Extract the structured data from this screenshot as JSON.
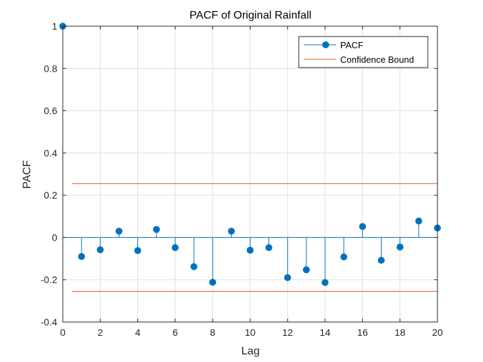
{
  "chart_data": {
    "type": "stem",
    "title": "PACF of Original Rainfall",
    "xlabel": "Lag",
    "ylabel": "PACF",
    "xlim": [
      0,
      20
    ],
    "ylim": [
      -0.4,
      1
    ],
    "xticks": [
      0,
      2,
      4,
      6,
      8,
      10,
      12,
      14,
      16,
      18,
      20
    ],
    "yticks": [
      -0.4,
      -0.2,
      0,
      0.2,
      0.4,
      0.6,
      0.8,
      1
    ],
    "grid": true,
    "legend_position": "top-right",
    "series": [
      {
        "name": "PACF",
        "color": "#0072BD",
        "x": [
          0,
          1,
          2,
          3,
          4,
          5,
          6,
          7,
          8,
          9,
          10,
          11,
          12,
          13,
          14,
          15,
          16,
          17,
          18,
          19,
          20
        ],
        "values": [
          1.0,
          -0.09,
          -0.058,
          0.03,
          -0.062,
          0.038,
          -0.048,
          -0.138,
          -0.212,
          0.03,
          -0.06,
          -0.048,
          -0.19,
          -0.153,
          -0.213,
          -0.092,
          0.052,
          -0.108,
          -0.045,
          0.078,
          0.045
        ]
      }
    ],
    "confidence_bound": {
      "name": "Confidence Bound",
      "color": "#D95319",
      "upper": 0.255,
      "lower": -0.255,
      "x_range": [
        0.5,
        20
      ]
    }
  }
}
